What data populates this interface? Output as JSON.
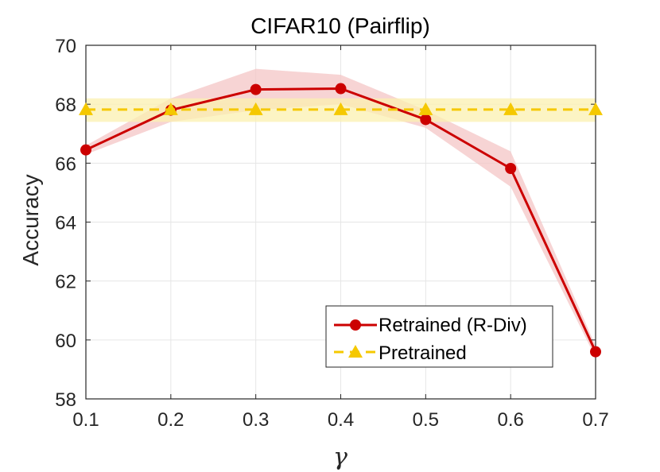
{
  "chart_data": {
    "type": "line",
    "title": "CIFAR10 (Pairflip)",
    "xlabel": "γ",
    "ylabel": "Accuracy",
    "x": [
      0.1,
      0.2,
      0.3,
      0.4,
      0.5,
      0.6,
      0.7
    ],
    "xticks": [
      "0.1",
      "0.2",
      "0.3",
      "0.4",
      "0.5",
      "0.6",
      "0.7"
    ],
    "yticks": [
      "58",
      "60",
      "62",
      "64",
      "66",
      "68",
      "70"
    ],
    "xlim": [
      0.1,
      0.7
    ],
    "ylim": [
      58,
      70
    ],
    "grid": true,
    "legend_position": "bottom-right",
    "series": [
      {
        "name": "Retrained (R-Div)",
        "values": [
          66.45,
          67.8,
          68.5,
          68.53,
          67.48,
          65.82,
          59.6
        ],
        "band_low": [
          66.3,
          67.4,
          67.8,
          68.0,
          67.2,
          65.2,
          59.4
        ],
        "band_high": [
          66.6,
          68.2,
          69.2,
          69.0,
          67.8,
          66.4,
          59.8
        ],
        "color": "#cc0000",
        "band_color": "#f4c6c6",
        "marker": "circle",
        "line_style": "solid"
      },
      {
        "name": "Pretrained",
        "values": [
          67.82,
          67.82,
          67.82,
          67.82,
          67.82,
          67.82,
          67.82
        ],
        "band_low": [
          67.4,
          67.4,
          67.4,
          67.4,
          67.4,
          67.4,
          67.4
        ],
        "band_high": [
          68.2,
          68.2,
          68.2,
          68.2,
          68.2,
          68.2,
          68.2
        ],
        "color": "#f5c800",
        "band_color": "#fbf0b0",
        "marker": "triangle",
        "line_style": "dashed"
      }
    ]
  }
}
